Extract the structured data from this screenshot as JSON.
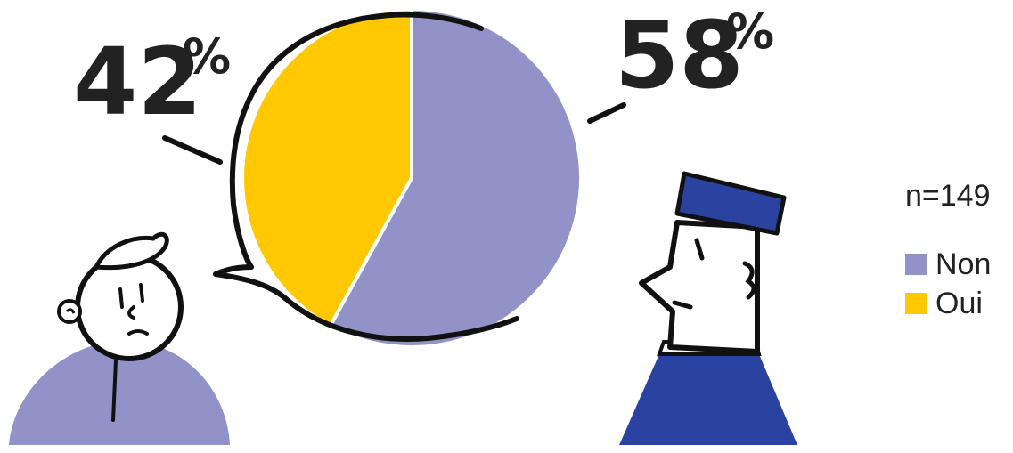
{
  "chart_data": {
    "type": "pie",
    "categories": [
      "Non",
      "Oui"
    ],
    "values": [
      58,
      42
    ],
    "value_labels": [
      "58",
      "42"
    ],
    "value_suffix": "%",
    "colors": [
      "#9193c8",
      "#ffc800"
    ],
    "legend": {
      "position": "right",
      "entries": [
        "Non",
        "Oui"
      ]
    },
    "sample_note": "n=149"
  },
  "colors": {
    "ink": "#222222",
    "person_left_shirt": "#9193c8",
    "person_right_cap": "#2a43a0",
    "person_right_shirt": "#2a43a0"
  },
  "illustration": {
    "left_figure": "person-with-cap-icon",
    "right_figure": "person-with-uniform-cap-icon"
  }
}
